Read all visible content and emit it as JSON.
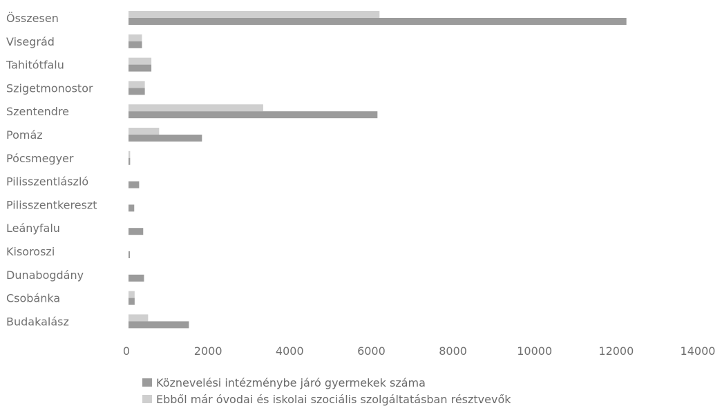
{
  "chart_data": {
    "type": "bar",
    "orientation": "horizontal",
    "categories": [
      "Összesen",
      "Visegrád",
      "Tahitótfalu",
      "Szigetmonostor",
      "Szentendre",
      "Pomáz",
      "Pócsmegyer",
      "Pilisszentlászló",
      "Pilisszentkereszt",
      "Leányfalu",
      "Kisoroszi",
      "Dunabogdány",
      "Csobánka",
      "Budakalász"
    ],
    "series": [
      {
        "name": "Köznevelési intézménybe járó gyermekek száma",
        "color": "#9b9b9b",
        "values": [
          12200,
          330,
          560,
          400,
          6100,
          1800,
          40,
          260,
          140,
          360,
          30,
          380,
          150,
          1480
        ]
      },
      {
        "name": "Ebből már óvodai és iskolai szociális szolgáltatásban résztvevők",
        "color": "#cfcfcf",
        "values": [
          6150,
          330,
          560,
          400,
          3300,
          750,
          40,
          0,
          0,
          0,
          0,
          0,
          150,
          480
        ]
      }
    ],
    "xticks": [
      "0",
      "2000",
      "4000",
      "6000",
      "8000",
      "10000",
      "12000",
      "14000"
    ],
    "xlim": [
      0,
      14000
    ],
    "grid": false,
    "legend_position": "bottom"
  }
}
